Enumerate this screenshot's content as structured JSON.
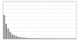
{
  "chart_data": {
    "type": "bar",
    "categories": [
      null,
      null,
      null,
      null,
      null,
      null,
      null,
      null,
      null,
      null,
      null,
      null,
      null,
      null,
      null,
      null,
      null,
      null,
      null,
      null,
      null,
      null,
      null,
      null,
      null,
      null,
      null,
      null,
      null,
      null,
      null,
      null,
      null,
      null,
      null,
      null
    ],
    "values": [
      64,
      40,
      27,
      18,
      12,
      9,
      7,
      5,
      4,
      3,
      3,
      2,
      2,
      1.5,
      1,
      1,
      1,
      0.8,
      0.6,
      0.5,
      0.4,
      0.3,
      0.3,
      0.2,
      0.2,
      0.1,
      0.1,
      0.1,
      0,
      0,
      0,
      0,
      0,
      0,
      0,
      0
    ],
    "color": "#8c8c8c",
    "ylim": [
      0,
      100
    ],
    "yticks": [
      0,
      10,
      20,
      30,
      40,
      50,
      60,
      70,
      80,
      90,
      100
    ],
    "grid": true,
    "tick_labels": false
  }
}
